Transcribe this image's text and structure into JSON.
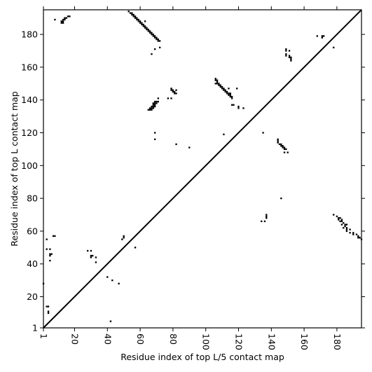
{
  "chart_data": {
    "type": "heatmap",
    "xlabel": "Residue index of top L/5 contact map",
    "ylabel": "Residue index of top L contact map",
    "xlim": [
      1,
      195
    ],
    "ylim": [
      1,
      195
    ],
    "x_ticks": [
      1,
      20,
      40,
      60,
      80,
      100,
      120,
      140,
      160,
      180
    ],
    "y_ticks": [
      1,
      20,
      40,
      60,
      80,
      100,
      120,
      140,
      160,
      180
    ],
    "diagonal": true,
    "upper_triangle_contacts": [
      [
        8,
        189
      ],
      [
        12,
        188
      ],
      [
        12,
        187
      ],
      [
        13,
        188
      ],
      [
        13,
        187
      ],
      [
        13,
        189
      ],
      [
        14,
        189
      ],
      [
        14,
        190
      ],
      [
        15,
        190
      ],
      [
        16,
        191
      ],
      [
        17,
        191
      ],
      [
        53,
        194
      ],
      [
        54,
        193
      ],
      [
        55,
        193
      ],
      [
        55,
        192
      ],
      [
        56,
        192
      ],
      [
        56,
        191
      ],
      [
        57,
        191
      ],
      [
        57,
        190
      ],
      [
        58,
        190
      ],
      [
        58,
        189
      ],
      [
        59,
        189
      ],
      [
        59,
        188
      ],
      [
        60,
        188
      ],
      [
        60,
        187
      ],
      [
        61,
        187
      ],
      [
        61,
        186
      ],
      [
        62,
        186
      ],
      [
        62,
        185
      ],
      [
        63,
        185
      ],
      [
        63,
        184
      ],
      [
        64,
        184
      ],
      [
        64,
        183
      ],
      [
        65,
        183
      ],
      [
        65,
        182
      ],
      [
        66,
        182
      ],
      [
        66,
        181
      ],
      [
        67,
        181
      ],
      [
        67,
        180
      ],
      [
        68,
        180
      ],
      [
        68,
        179
      ],
      [
        69,
        179
      ],
      [
        69,
        178
      ],
      [
        70,
        178
      ],
      [
        70,
        177
      ],
      [
        71,
        177
      ],
      [
        71,
        176
      ],
      [
        72,
        176
      ],
      [
        63,
        188
      ],
      [
        67,
        168
      ],
      [
        69,
        171
      ],
      [
        72,
        172
      ],
      [
        65,
        134
      ],
      [
        66,
        134
      ],
      [
        67,
        134
      ],
      [
        66,
        135
      ],
      [
        67,
        135
      ],
      [
        68,
        135
      ],
      [
        67,
        136
      ],
      [
        68,
        136
      ],
      [
        69,
        136
      ],
      [
        68,
        137
      ],
      [
        69,
        137
      ],
      [
        68,
        138
      ],
      [
        69,
        138
      ],
      [
        70,
        138
      ],
      [
        69,
        139
      ],
      [
        70,
        139
      ],
      [
        71,
        139
      ],
      [
        71,
        141
      ],
      [
        69,
        116
      ],
      [
        69,
        120
      ],
      [
        77,
        141
      ],
      [
        79,
        141
      ],
      [
        79,
        147
      ],
      [
        79,
        146
      ],
      [
        80,
        146
      ],
      [
        80,
        145
      ],
      [
        81,
        145
      ],
      [
        81,
        144
      ],
      [
        82,
        144
      ],
      [
        82,
        146
      ],
      [
        82,
        113
      ],
      [
        90,
        111
      ],
      [
        106,
        153
      ],
      [
        106,
        152
      ],
      [
        107,
        152
      ],
      [
        107,
        151
      ],
      [
        106,
        150
      ],
      [
        107,
        150
      ],
      [
        108,
        150
      ],
      [
        108,
        149
      ],
      [
        109,
        149
      ],
      [
        109,
        148
      ],
      [
        110,
        148
      ],
      [
        110,
        147
      ],
      [
        111,
        147
      ],
      [
        111,
        146
      ],
      [
        112,
        146
      ],
      [
        112,
        145
      ],
      [
        113,
        145
      ],
      [
        113,
        144
      ],
      [
        114,
        144
      ],
      [
        115,
        144
      ],
      [
        114,
        143
      ],
      [
        115,
        143
      ],
      [
        115,
        142
      ],
      [
        116,
        142
      ],
      [
        116,
        141
      ],
      [
        114,
        147
      ],
      [
        116,
        137
      ],
      [
        117,
        137
      ],
      [
        119,
        147
      ],
      [
        120,
        136
      ],
      [
        120,
        135
      ],
      [
        123,
        135
      ],
      [
        111,
        119
      ],
      [
        135,
        120
      ],
      [
        144,
        116
      ],
      [
        144,
        115
      ],
      [
        144,
        114
      ],
      [
        145,
        113
      ],
      [
        146,
        113
      ],
      [
        146,
        112
      ],
      [
        147,
        112
      ],
      [
        147,
        111
      ],
      [
        148,
        111
      ],
      [
        148,
        110
      ],
      [
        149,
        110
      ],
      [
        148,
        108
      ],
      [
        150,
        108
      ],
      [
        149,
        171
      ],
      [
        149,
        170
      ],
      [
        151,
        170
      ],
      [
        149,
        168
      ],
      [
        149,
        167
      ],
      [
        151,
        167
      ],
      [
        151,
        166
      ],
      [
        152,
        166
      ],
      [
        152,
        165
      ],
      [
        152,
        164
      ],
      [
        168,
        179
      ],
      [
        171,
        179
      ],
      [
        172,
        179
      ],
      [
        171,
        178
      ],
      [
        178,
        172
      ]
    ],
    "lower_triangle_contacts": [
      [
        1,
        28
      ],
      [
        3,
        14
      ],
      [
        4,
        14
      ],
      [
        4,
        11
      ],
      [
        4,
        10
      ],
      [
        3,
        55
      ],
      [
        3,
        49
      ],
      [
        5,
        49
      ],
      [
        5,
        46
      ],
      [
        5,
        45
      ],
      [
        5,
        42
      ],
      [
        6,
        46
      ],
      [
        7,
        57
      ],
      [
        8,
        57
      ],
      [
        28,
        48
      ],
      [
        30,
        48
      ],
      [
        30,
        45
      ],
      [
        31,
        45
      ],
      [
        30,
        44
      ],
      [
        33,
        44
      ],
      [
        33,
        41
      ],
      [
        40,
        32
      ],
      [
        42,
        5
      ],
      [
        43,
        30
      ],
      [
        47,
        28
      ],
      [
        50,
        57
      ],
      [
        50,
        56
      ],
      [
        49,
        55
      ],
      [
        57,
        50
      ],
      [
        134,
        66
      ],
      [
        136,
        66
      ],
      [
        137,
        68
      ],
      [
        137,
        69
      ],
      [
        137,
        70
      ],
      [
        146,
        80
      ],
      [
        178,
        70
      ],
      [
        180,
        69
      ],
      [
        181,
        68
      ],
      [
        182,
        68
      ],
      [
        181,
        67
      ],
      [
        183,
        67
      ],
      [
        182,
        66
      ],
      [
        183,
        66
      ],
      [
        184,
        65
      ],
      [
        183,
        64
      ],
      [
        185,
        64
      ],
      [
        186,
        64
      ],
      [
        185,
        63
      ],
      [
        184,
        62
      ],
      [
        186,
        62
      ],
      [
        186,
        61
      ],
      [
        188,
        61
      ],
      [
        186,
        60
      ],
      [
        188,
        59
      ],
      [
        190,
        59
      ],
      [
        190,
        58
      ],
      [
        192,
        58
      ],
      [
        193,
        57
      ],
      [
        193,
        56
      ],
      [
        194,
        56
      ],
      [
        195,
        55
      ]
    ]
  }
}
